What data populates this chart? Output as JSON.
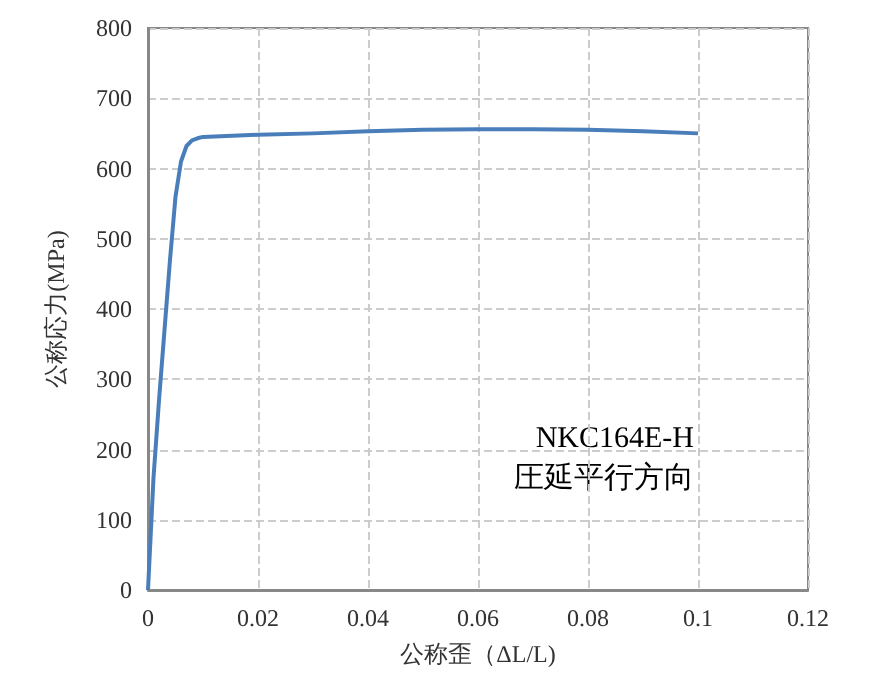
{
  "chart_data": {
    "type": "line",
    "xlabel": "公称歪（ΔL/L)",
    "ylabel": "公称応力(MPa)",
    "annotations": [
      "NKC164E-H",
      "圧延平行方向"
    ],
    "xlim": [
      0,
      0.12
    ],
    "xticks": [
      0,
      0.02,
      0.04,
      0.06,
      0.08,
      0.1,
      0.12
    ],
    "ylim": [
      0,
      800
    ],
    "yticks": [
      0,
      100,
      200,
      300,
      400,
      500,
      600,
      700,
      800
    ],
    "grid": true,
    "marker": "none",
    "line_style": "solid",
    "series": [
      {
        "color": "#4a7ebb",
        "x": [
          0,
          0.001,
          0.002,
          0.0033,
          0.004,
          0.005,
          0.006,
          0.007,
          0.008,
          0.009,
          0.01,
          0.02,
          0.03,
          0.04,
          0.05,
          0.06,
          0.07,
          0.08,
          0.09,
          0.1
        ],
        "values": [
          0,
          160,
          270,
          400,
          470,
          560,
          610,
          632,
          640,
          643,
          645,
          648,
          650,
          653,
          655,
          656,
          656,
          655,
          653,
          650
        ]
      }
    ]
  }
}
